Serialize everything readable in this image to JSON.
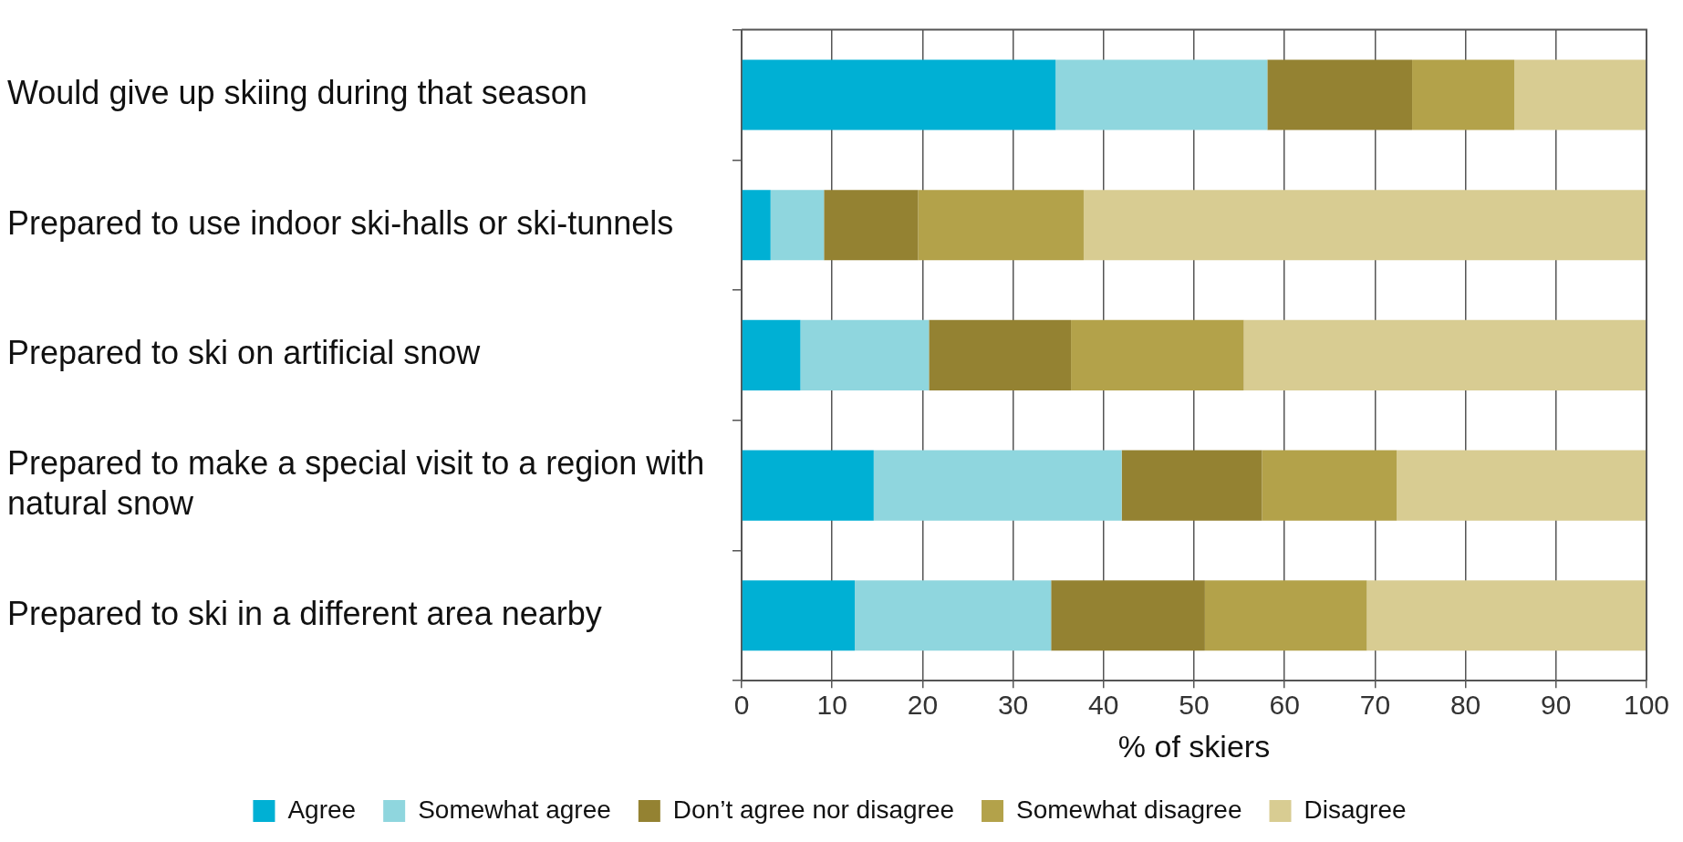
{
  "chart_data": {
    "type": "bar",
    "orientation": "horizontal",
    "stacked": true,
    "categories": [
      "Would give up skiing during that season",
      "Prepared to use indoor ski-halls or ski-tunnels",
      "Prepared to ski on artificial snow",
      "Prepared to make a special visit to a region with natural snow",
      "Prepared to ski in a different area nearby"
    ],
    "series": [
      {
        "name": "Agree",
        "color": "#00b0d4",
        "values": [
          34.7,
          3.2,
          6.5,
          14.6,
          12.5
        ]
      },
      {
        "name": "Somewhat agree",
        "color": "#8fd6de",
        "values": [
          23.4,
          5.9,
          14.2,
          27.4,
          21.7
        ]
      },
      {
        "name": "Don’t agree nor disagree",
        "color": "#948232",
        "values": [
          16.0,
          10.4,
          15.7,
          15.5,
          17.0
        ]
      },
      {
        "name": "Somewhat disagree",
        "color": "#b3a24a",
        "values": [
          11.3,
          18.3,
          19.1,
          14.9,
          17.9
        ]
      },
      {
        "name": "Disagree",
        "color": "#d8cc92",
        "values": [
          14.6,
          62.2,
          44.5,
          27.6,
          30.9
        ]
      }
    ],
    "xlabel": "% of skiers",
    "xlim": [
      0,
      100
    ],
    "xticks": [
      0,
      10,
      20,
      30,
      40,
      50,
      60,
      70,
      80,
      90,
      100
    ],
    "grid": "x",
    "legend": "bottom"
  }
}
